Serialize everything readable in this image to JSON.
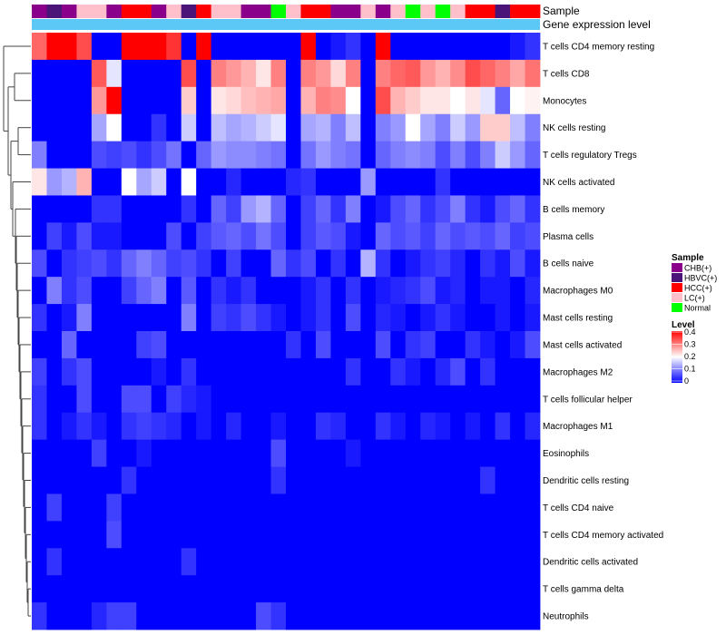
{
  "chart_data": {
    "type": "heatmap",
    "annotation_titles": {
      "sample": "Sample",
      "gene_expression": "Gene expression level"
    },
    "sample_categories": [
      {
        "name": "CHB(+)",
        "color": "#8B008B"
      },
      {
        "name": "HBVC(+)",
        "color": "#4B1478"
      },
      {
        "name": "HCC(+)",
        "color": "#FF0000"
      },
      {
        "name": "LC(+)",
        "color": "#FFC0CB"
      },
      {
        "name": "Normal",
        "color": "#00FF00"
      }
    ],
    "sample_annotation": [
      "CHB(+)",
      "HBVC(+)",
      "CHB(+)",
      "LC(+)",
      "LC(+)",
      "CHB(+)",
      "HCC(+)",
      "HCC(+)",
      "CHB(+)",
      "LC(+)",
      "HBVC(+)",
      "HCC(+)",
      "LC(+)",
      "LC(+)",
      "CHB(+)",
      "CHB(+)",
      "Normal",
      "LC(+)",
      "HCC(+)",
      "HCC(+)",
      "CHB(+)",
      "CHB(+)",
      "LC(+)",
      "CHB(+)",
      "LC(+)",
      "Normal",
      "LC(+)",
      "Normal",
      "LC(+)",
      "HCC(+)",
      "HCC(+)",
      "HBVC(+)",
      "HCC(+)",
      "HCC(+)"
    ],
    "gene_expression_color": "#5BC8F5",
    "legend": {
      "sample_title": "Sample",
      "level_title": "Level",
      "level_ticks": [
        "0.4",
        "0.3",
        "0.2",
        "0.1",
        "0"
      ],
      "level_range": [
        0,
        0.4
      ],
      "colors": {
        "low": "#0000FF",
        "mid": "#FFFFFF",
        "high": "#FF0000"
      }
    },
    "rows": [
      "T cells CD4 memory resting",
      "T cells CD8",
      "Monocytes",
      "NK cells resting",
      "T cells regulatory  Tregs",
      "NK cells activated",
      "B cells memory",
      "Plasma cells",
      "B cells naive",
      "Macrophages M0",
      "Mast cells resting",
      "Mast cells activated",
      "Macrophages M2",
      "T cells follicular helper",
      "Macrophages M1",
      "Eosinophils",
      "Dendritic cells resting",
      "T cells CD4 naive",
      "T cells CD4 memory activated",
      "Dendritic cells activated",
      "T cells gamma delta",
      "Neutrophils"
    ],
    "values": [
      [
        0.32,
        0.4,
        0.4,
        0.34,
        0.0,
        0.0,
        0.4,
        0.4,
        0.4,
        0.36,
        0.0,
        0.4,
        0.0,
        0.0,
        0.0,
        0.0,
        0.0,
        0.0,
        0.4,
        0.0,
        0.02,
        0.04,
        0.0,
        0.4,
        0.0,
        0.0,
        0.0,
        0.0,
        0.0,
        0.0,
        0.0,
        0.0,
        0.02,
        0.04
      ],
      [
        0.0,
        0.0,
        0.0,
        0.0,
        0.33,
        0.18,
        0.0,
        0.0,
        0.0,
        0.0,
        0.34,
        0.0,
        0.3,
        0.28,
        0.26,
        0.22,
        0.3,
        0.0,
        0.3,
        0.28,
        0.23,
        0.3,
        0.0,
        0.3,
        0.32,
        0.33,
        0.28,
        0.26,
        0.29,
        0.34,
        0.32,
        0.3,
        0.27,
        0.31
      ],
      [
        0.0,
        0.0,
        0.0,
        0.0,
        0.28,
        0.4,
        0.0,
        0.0,
        0.0,
        0.0,
        0.24,
        0.0,
        0.22,
        0.23,
        0.25,
        0.26,
        0.27,
        0.0,
        0.26,
        0.3,
        0.29,
        0.2,
        0.0,
        0.34,
        0.26,
        0.24,
        0.22,
        0.22,
        0.2,
        0.22,
        0.18,
        0.08,
        0.2,
        0.21
      ],
      [
        0.0,
        0.0,
        0.0,
        0.0,
        0.13,
        0.2,
        0.0,
        0.0,
        0.04,
        0.0,
        0.16,
        0.0,
        0.15,
        0.13,
        0.14,
        0.16,
        0.18,
        0.0,
        0.13,
        0.14,
        0.1,
        0.15,
        0.0,
        0.1,
        0.12,
        0.2,
        0.13,
        0.1,
        0.16,
        0.12,
        0.24,
        0.24,
        0.15,
        0.1
      ],
      [
        0.1,
        0.0,
        0.0,
        0.0,
        0.06,
        0.05,
        0.06,
        0.04,
        0.06,
        0.09,
        0.0,
        0.08,
        0.12,
        0.11,
        0.11,
        0.1,
        0.09,
        0.0,
        0.09,
        0.12,
        0.1,
        0.09,
        0.0,
        0.08,
        0.1,
        0.11,
        0.1,
        0.06,
        0.1,
        0.06,
        0.1,
        0.16,
        0.12,
        0.08
      ],
      [
        0.22,
        0.12,
        0.14,
        0.26,
        0.0,
        0.0,
        0.2,
        0.13,
        0.16,
        0.0,
        0.2,
        0.0,
        0.0,
        0.03,
        0.0,
        0.0,
        0.0,
        0.03,
        0.04,
        0.0,
        0.0,
        0.0,
        0.12,
        0.0,
        0.0,
        0.0,
        0.0,
        0.04,
        0.0,
        0.0,
        0.0,
        0.0,
        0.0,
        0.0
      ],
      [
        0.0,
        0.0,
        0.0,
        0.0,
        0.04,
        0.04,
        0.0,
        0.0,
        0.0,
        0.0,
        0.04,
        0.0,
        0.08,
        0.05,
        0.12,
        0.14,
        0.08,
        0.0,
        0.05,
        0.08,
        0.04,
        0.1,
        0.0,
        0.02,
        0.06,
        0.08,
        0.04,
        0.06,
        0.1,
        0.04,
        0.02,
        0.06,
        0.08,
        0.04
      ],
      [
        0.0,
        0.05,
        0.02,
        0.06,
        0.02,
        0.02,
        0.0,
        0.0,
        0.0,
        0.06,
        0.0,
        0.05,
        0.07,
        0.08,
        0.06,
        0.09,
        0.06,
        0.0,
        0.05,
        0.07,
        0.06,
        0.02,
        0.0,
        0.08,
        0.06,
        0.07,
        0.05,
        0.08,
        0.06,
        0.07,
        0.06,
        0.08,
        0.05,
        0.06
      ],
      [
        0.06,
        0.0,
        0.04,
        0.05,
        0.06,
        0.04,
        0.08,
        0.1,
        0.08,
        0.05,
        0.06,
        0.04,
        0.0,
        0.05,
        0.0,
        0.0,
        0.08,
        0.04,
        0.06,
        0.0,
        0.04,
        0.0,
        0.14,
        0.04,
        0.0,
        0.02,
        0.04,
        0.05,
        0.03,
        0.0,
        0.04,
        0.02,
        0.06,
        0.02
      ],
      [
        0.0,
        0.1,
        0.04,
        0.06,
        0.0,
        0.0,
        0.05,
        0.08,
        0.1,
        0.0,
        0.07,
        0.0,
        0.04,
        0.02,
        0.04,
        0.0,
        0.0,
        0.0,
        0.02,
        0.04,
        0.0,
        0.04,
        0.0,
        0.02,
        0.03,
        0.04,
        0.06,
        0.02,
        0.03,
        0.0,
        0.02,
        0.02,
        0.0,
        0.03
      ],
      [
        0.04,
        0.0,
        0.02,
        0.1,
        0.0,
        0.0,
        0.0,
        0.0,
        0.0,
        0.0,
        0.1,
        0.0,
        0.05,
        0.04,
        0.06,
        0.04,
        0.02,
        0.0,
        0.02,
        0.04,
        0.0,
        0.06,
        0.0,
        0.03,
        0.02,
        0.0,
        0.02,
        0.04,
        0.02,
        0.0,
        0.0,
        0.02,
        0.0,
        0.02
      ],
      [
        0.0,
        0.0,
        0.08,
        0.0,
        0.0,
        0.0,
        0.0,
        0.05,
        0.06,
        0.0,
        0.0,
        0.0,
        0.0,
        0.0,
        0.0,
        0.0,
        0.0,
        0.04,
        0.0,
        0.06,
        0.0,
        0.0,
        0.0,
        0.06,
        0.0,
        0.04,
        0.05,
        0.0,
        0.0,
        0.04,
        0.02,
        0.0,
        0.02,
        0.06
      ],
      [
        0.05,
        0.0,
        0.04,
        0.06,
        0.0,
        0.0,
        0.0,
        0.0,
        0.02,
        0.0,
        0.04,
        0.0,
        0.0,
        0.0,
        0.0,
        0.0,
        0.0,
        0.0,
        0.0,
        0.0,
        0.0,
        0.04,
        0.0,
        0.0,
        0.04,
        0.02,
        0.0,
        0.03,
        0.06,
        0.0,
        0.04,
        0.0,
        0.0,
        0.0
      ],
      [
        0.04,
        0.0,
        0.0,
        0.06,
        0.0,
        0.0,
        0.06,
        0.06,
        0.0,
        0.05,
        0.03,
        0.02,
        0.0,
        0.0,
        0.0,
        0.0,
        0.0,
        0.0,
        0.0,
        0.0,
        0.0,
        0.0,
        0.0,
        0.0,
        0.0,
        0.0,
        0.0,
        0.0,
        0.0,
        0.0,
        0.0,
        0.0,
        0.0,
        0.0
      ],
      [
        0.04,
        0.0,
        0.02,
        0.04,
        0.02,
        0.0,
        0.04,
        0.05,
        0.04,
        0.03,
        0.0,
        0.02,
        0.0,
        0.03,
        0.0,
        0.0,
        0.02,
        0.0,
        0.0,
        0.04,
        0.03,
        0.0,
        0.0,
        0.04,
        0.02,
        0.0,
        0.03,
        0.02,
        0.0,
        0.02,
        0.0,
        0.04,
        0.0,
        0.03
      ],
      [
        0.0,
        0.0,
        0.0,
        0.0,
        0.05,
        0.0,
        0.0,
        0.02,
        0.0,
        0.0,
        0.0,
        0.0,
        0.0,
        0.0,
        0.0,
        0.0,
        0.06,
        0.0,
        0.0,
        0.0,
        0.0,
        0.02,
        0.0,
        0.0,
        0.0,
        0.0,
        0.0,
        0.0,
        0.0,
        0.0,
        0.0,
        0.0,
        0.0,
        0.0
      ],
      [
        0.0,
        0.0,
        0.0,
        0.0,
        0.0,
        0.0,
        0.04,
        0.0,
        0.0,
        0.0,
        0.0,
        0.0,
        0.0,
        0.0,
        0.0,
        0.0,
        0.04,
        0.0,
        0.0,
        0.0,
        0.0,
        0.0,
        0.0,
        0.0,
        0.0,
        0.0,
        0.0,
        0.0,
        0.0,
        0.0,
        0.04,
        0.0,
        0.0,
        0.0
      ],
      [
        0.0,
        0.05,
        0.0,
        0.0,
        0.0,
        0.05,
        0.0,
        0.0,
        0.0,
        0.0,
        0.0,
        0.0,
        0.0,
        0.0,
        0.0,
        0.0,
        0.0,
        0.0,
        0.0,
        0.0,
        0.0,
        0.0,
        0.0,
        0.0,
        0.0,
        0.0,
        0.0,
        0.0,
        0.0,
        0.0,
        0.0,
        0.0,
        0.0,
        0.0
      ],
      [
        0.0,
        0.0,
        0.0,
        0.0,
        0.0,
        0.06,
        0.0,
        0.0,
        0.0,
        0.0,
        0.0,
        0.0,
        0.0,
        0.0,
        0.0,
        0.0,
        0.0,
        0.0,
        0.0,
        0.0,
        0.0,
        0.0,
        0.0,
        0.0,
        0.0,
        0.0,
        0.0,
        0.0,
        0.0,
        0.0,
        0.0,
        0.0,
        0.0,
        0.0
      ],
      [
        0.0,
        0.04,
        0.0,
        0.0,
        0.0,
        0.0,
        0.0,
        0.0,
        0.0,
        0.0,
        0.04,
        0.0,
        0.0,
        0.0,
        0.0,
        0.0,
        0.0,
        0.0,
        0.0,
        0.0,
        0.0,
        0.0,
        0.0,
        0.0,
        0.0,
        0.0,
        0.0,
        0.0,
        0.0,
        0.0,
        0.0,
        0.0,
        0.0,
        0.0
      ],
      [
        0.0,
        0.0,
        0.0,
        0.0,
        0.0,
        0.0,
        0.0,
        0.0,
        0.0,
        0.0,
        0.0,
        0.0,
        0.0,
        0.0,
        0.0,
        0.0,
        0.0,
        0.0,
        0.0,
        0.0,
        0.0,
        0.0,
        0.0,
        0.0,
        0.0,
        0.0,
        0.0,
        0.0,
        0.0,
        0.0,
        0.0,
        0.0,
        0.0,
        0.0
      ],
      [
        0.04,
        0.0,
        0.0,
        0.0,
        0.03,
        0.05,
        0.05,
        0.0,
        0.0,
        0.0,
        0.0,
        0.0,
        0.0,
        0.0,
        0.0,
        0.06,
        0.04,
        0.0,
        0.0,
        0.0,
        0.0,
        0.0,
        0.0,
        0.0,
        0.0,
        0.0,
        0.0,
        0.0,
        0.0,
        0.0,
        0.0,
        0.0,
        0.0,
        0.0
      ]
    ]
  }
}
